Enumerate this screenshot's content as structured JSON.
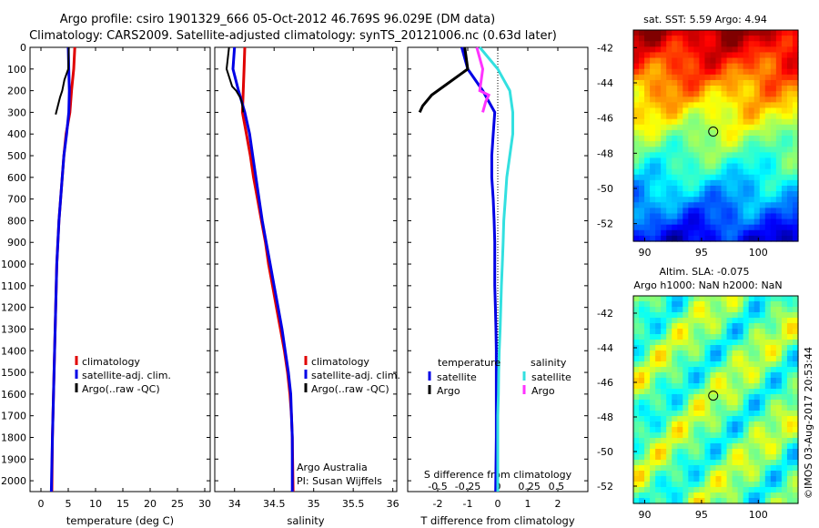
{
  "title_line1": "Argo profile: csiro 1901329_666 05-Oct-2012 46.769S 96.029E (DM data)",
  "title_line2": "Climatology: CARS2009. Satellite-adjusted climatology: synTS_20121006.nc (0.63d later)",
  "watermark": "©IMOS 03-Aug-2017 20:53:44",
  "colors": {
    "climatology": "#e00000",
    "satellite": "#0000e6",
    "argo": "#000000",
    "sal_satellite": "#33e0e0",
    "sal_argo": "#ff33ff"
  },
  "chart_data": [
    {
      "type": "line",
      "id": "temperature",
      "xlabel": "temperature (deg C)",
      "ylabel": "",
      "xlim": [
        -2,
        31
      ],
      "ylim": [
        2050,
        0
      ],
      "xticks": [
        0,
        5,
        10,
        15,
        20,
        25,
        30
      ],
      "yticks": [
        0,
        100,
        200,
        300,
        400,
        500,
        600,
        700,
        800,
        900,
        1000,
        1100,
        1200,
        1300,
        1400,
        1500,
        1600,
        1700,
        1800,
        1900,
        2000
      ],
      "legend": {
        "position": "lower-center",
        "entries": [
          "climatology",
          "satellite-adj. clim.",
          "Argo(..raw -QC)"
        ]
      },
      "series": [
        {
          "name": "climatology",
          "x": [
            6.2,
            6.0,
            5.6,
            5.3,
            4.6,
            4.2,
            3.9,
            3.6,
            3.3,
            3.1,
            2.9,
            2.8,
            2.7,
            2.6,
            2.5,
            2.4,
            2.3,
            2.2,
            2.1,
            2.0
          ],
          "y": [
            0,
            100,
            200,
            300,
            400,
            500,
            600,
            700,
            800,
            900,
            1000,
            1100,
            1200,
            1300,
            1400,
            1500,
            1600,
            1700,
            1800,
            2050
          ]
        },
        {
          "name": "satellite-adj. clim.",
          "x": [
            5.0,
            5.1,
            5.2,
            5.1,
            4.7,
            4.2,
            3.9,
            3.6,
            3.3,
            3.1,
            2.9,
            2.8,
            2.7,
            2.6,
            2.5,
            2.4,
            2.3,
            2.2,
            2.1,
            1.9
          ],
          "y": [
            0,
            100,
            200,
            300,
            400,
            500,
            600,
            700,
            800,
            900,
            1000,
            1100,
            1200,
            1300,
            1400,
            1500,
            1600,
            1700,
            1800,
            2050
          ]
        },
        {
          "name": "Argo(..raw -QC)",
          "x": [
            5.1,
            5.0,
            4.3,
            3.9,
            3.5,
            3.3,
            3.1,
            2.9,
            2.7
          ],
          "y": [
            0,
            100,
            150,
            200,
            230,
            250,
            270,
            290,
            310
          ]
        }
      ]
    },
    {
      "type": "line",
      "id": "salinity",
      "xlabel": "salinity",
      "ylabel": "",
      "xlim": [
        33.75,
        36.05
      ],
      "ylim": [
        2050,
        0
      ],
      "xticks": [
        34,
        34.5,
        35,
        35.5,
        36
      ],
      "legend": {
        "position": "lower-center",
        "entries": [
          "climatology",
          "satellite-adj. clim.",
          "Argo(..raw -QC)"
        ]
      },
      "annotations": [
        "Argo Australia",
        "PI: Susan Wijffels"
      ],
      "series": [
        {
          "name": "climatology",
          "x": [
            34.13,
            34.12,
            34.11,
            34.1,
            34.15,
            34.2,
            34.24,
            34.29,
            34.34,
            34.39,
            34.43,
            34.48,
            34.53,
            34.58,
            34.63,
            34.67,
            34.7,
            34.72,
            34.73,
            34.74
          ],
          "y": [
            0,
            100,
            200,
            300,
            400,
            500,
            600,
            700,
            800,
            900,
            1000,
            1100,
            1200,
            1300,
            1400,
            1500,
            1600,
            1700,
            1800,
            2050
          ]
        },
        {
          "name": "satellite-adj. clim.",
          "x": [
            34.0,
            33.98,
            34.05,
            34.13,
            34.19,
            34.23,
            34.27,
            34.31,
            34.35,
            34.4,
            34.45,
            34.5,
            34.55,
            34.6,
            34.64,
            34.68,
            34.71,
            34.72,
            34.73,
            34.73
          ],
          "y": [
            0,
            100,
            200,
            300,
            400,
            500,
            600,
            700,
            800,
            900,
            1000,
            1100,
            1200,
            1300,
            1400,
            1500,
            1600,
            1700,
            1800,
            2050
          ]
        },
        {
          "name": "Argo(..raw -QC)",
          "x": [
            33.93,
            33.9,
            33.97,
            34.02,
            34.07,
            34.09,
            34.1,
            34.11
          ],
          "y": [
            0,
            100,
            180,
            200,
            230,
            250,
            270,
            300
          ]
        }
      ]
    },
    {
      "type": "line",
      "id": "difference",
      "xlabel": "T difference from climatology",
      "x2label": "S difference from climatology",
      "ylabel": "",
      "xlim": [
        -3,
        3
      ],
      "ylim": [
        2050,
        0
      ],
      "xticks": [
        -2,
        -1,
        0,
        1,
        2
      ],
      "x2ticks_labels": [
        "-0.5",
        "-0.25",
        "0",
        "0.25",
        "0.5"
      ],
      "legend": {
        "position": "lower-center",
        "entries": [
          "temperature",
          "satellite",
          "Argo",
          "salinity",
          "satellite",
          "Argo"
        ]
      },
      "series": [
        {
          "name": "satellite",
          "group": "temperature",
          "x": [
            -1.2,
            -1.0,
            -0.5,
            -0.1,
            -0.15,
            -0.2,
            -0.2,
            -0.15,
            -0.12,
            -0.1,
            -0.1,
            -0.1,
            -0.08,
            -0.06,
            -0.05,
            -0.05,
            -0.05,
            -0.05,
            -0.05,
            -0.07
          ],
          "y": [
            0,
            100,
            200,
            300,
            400,
            500,
            600,
            700,
            800,
            900,
            1000,
            1100,
            1200,
            1300,
            1400,
            1500,
            1600,
            1700,
            1800,
            2050
          ]
        },
        {
          "name": "Argo",
          "group": "temperature",
          "x": [
            -1.1,
            -1.0,
            -1.7,
            -2.2,
            -2.5,
            -2.6
          ],
          "y": [
            0,
            100,
            170,
            220,
            270,
            300
          ]
        },
        {
          "name": "satellite",
          "group": "salinity",
          "x": [
            -0.6,
            0.0,
            0.4,
            0.5,
            0.5,
            0.4,
            0.3,
            0.25,
            0.2,
            0.18,
            0.15,
            0.12,
            0.1,
            0.08,
            0.05,
            0.03,
            0.02,
            0.0,
            0.0,
            0.0
          ],
          "y": [
            0,
            100,
            200,
            300,
            400,
            500,
            600,
            700,
            800,
            900,
            1000,
            1100,
            1200,
            1300,
            1400,
            1500,
            1600,
            1700,
            1800,
            2050
          ]
        },
        {
          "name": "Argo",
          "group": "salinity",
          "x": [
            -0.7,
            -0.5,
            -0.6,
            -0.3,
            -0.4,
            -0.5
          ],
          "y": [
            0,
            100,
            200,
            220,
            250,
            300
          ]
        }
      ]
    },
    {
      "type": "heatmap",
      "id": "sst_map",
      "title": "sat. SST: 5.59 Argo: 4.94",
      "xlim": [
        89,
        103.5
      ],
      "ylim": [
        -53,
        -41
      ],
      "xticks": [
        90,
        95,
        100
      ],
      "yticks": [
        -42,
        -44,
        -46,
        -48,
        -50,
        -52
      ],
      "marker": {
        "lon": 96.029,
        "lat": -46.769
      }
    },
    {
      "type": "heatmap",
      "id": "sla_map",
      "title": "Altim. SLA: -0.075",
      "subtitle": "Argo h1000: NaN h2000: NaN",
      "xlim": [
        89,
        103.5
      ],
      "ylim": [
        -53,
        -41
      ],
      "xticks": [
        90,
        95,
        100
      ],
      "yticks": [
        -42,
        -44,
        -46,
        -48,
        -50,
        -52
      ],
      "marker": {
        "lon": 96.029,
        "lat": -46.769
      }
    }
  ]
}
